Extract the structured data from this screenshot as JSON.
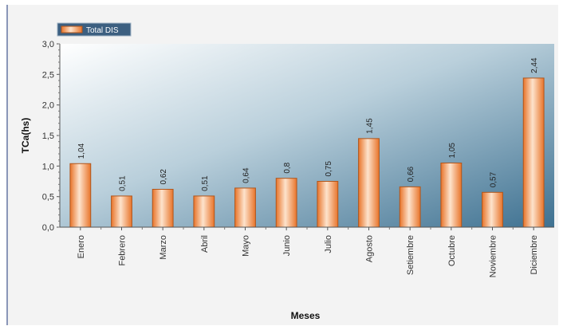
{
  "chart_data": {
    "type": "bar",
    "categories": [
      "Enero",
      "Febrero",
      "Marzo",
      "Abril",
      "Mayo",
      "Junio",
      "Julio",
      "Agosto",
      "Setiembre",
      "Octubre",
      "Noviembre",
      "Diciembre"
    ],
    "series": [
      {
        "name": "Total DIS",
        "values": [
          1.04,
          0.51,
          0.62,
          0.51,
          0.64,
          0.8,
          0.75,
          1.45,
          0.66,
          1.05,
          0.57,
          2.44
        ],
        "labels": [
          "1,04",
          "0,51",
          "0,62",
          "0,51",
          "0,64",
          "0,8",
          "0,75",
          "1,45",
          "0,66",
          "1,05",
          "0,57",
          "2,44"
        ]
      }
    ],
    "xlabel": "Meses",
    "ylabel": "TCa(hs)",
    "ylim": [
      0,
      3.0
    ],
    "yticks": [
      0,
      0.5,
      1.0,
      1.5,
      2.0,
      2.5,
      3.0
    ],
    "ytick_labels": [
      "0,0",
      "0,5",
      "1,0",
      "1,5",
      "2,0",
      "2,5",
      "3,0"
    ],
    "legend_position": "top-left",
    "grid": false,
    "colors": {
      "bar_dark": "#e8742a",
      "bar_light": "#fde3cc",
      "plot_bg_dark": "#3e7191",
      "plot_bg_light": "#ffffff",
      "legend_bg": "#3c5f80"
    }
  }
}
